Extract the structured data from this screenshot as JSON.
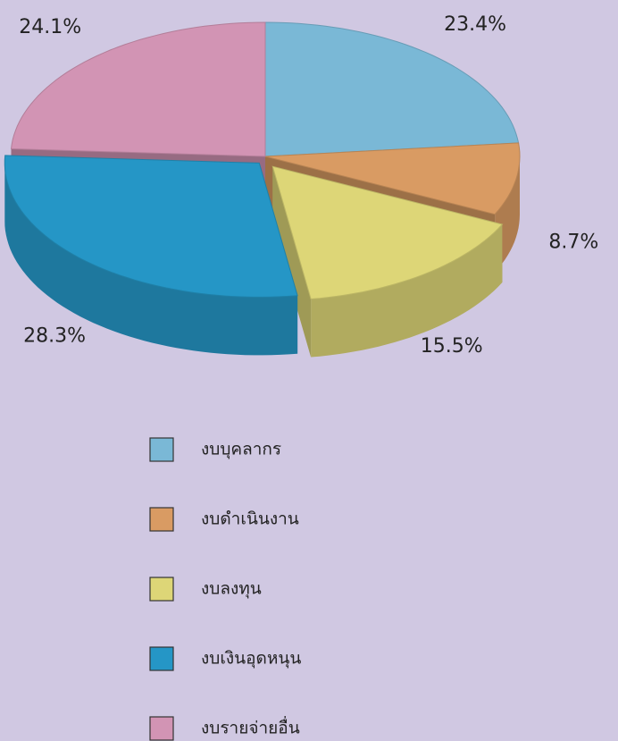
{
  "chart_data": {
    "type": "pie",
    "categories": [
      "งบบุคลากร",
      "งบดำเนินงาน",
      "งบลงทุน",
      "งบเงินอุดหนุน",
      "งบรายจ่ายอื่น"
    ],
    "values": [
      23.4,
      8.7,
      15.5,
      28.3,
      24.1
    ],
    "value_labels": [
      "23.4%",
      "8.7%",
      "15.5%",
      "28.3%",
      "24.1%"
    ],
    "colors": [
      "#7ab8d6",
      "#d99b63",
      "#ddd677",
      "#2596c6",
      "#d294b4"
    ],
    "legend": "bottom"
  }
}
